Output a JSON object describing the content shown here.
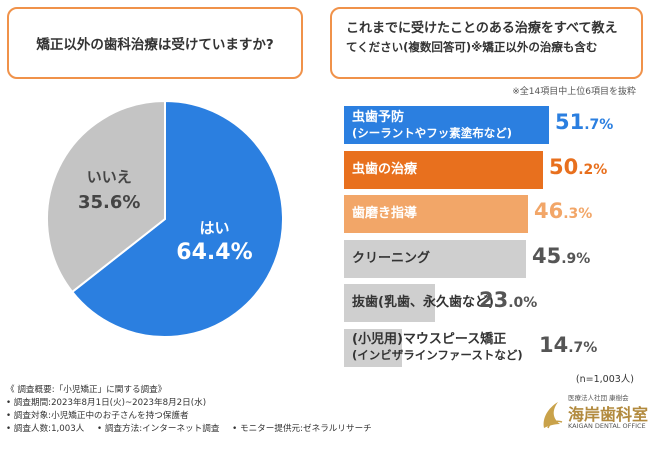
{
  "question_left": "矯正以外の歯科治療は受けていますか?",
  "question_right": {
    "line1": "これまでに受けたことのある治療をすべて教え",
    "line2": "てください(複数回答可)※矯正以外の治療も含む"
  },
  "note_top": "※全14項目中上位6項目を抜粋",
  "n_note": "(n=1,003人)",
  "colors": {
    "pie_yes": "#2b7fe0",
    "pie_no": "#c4c4c4",
    "border": "#f0924a"
  },
  "chart_data": [
    {
      "type": "pie",
      "title": "矯正以外の歯科治療は受けていますか?",
      "slices": [
        {
          "label": "はい",
          "value": 64.4,
          "display": "64.4%"
        },
        {
          "label": "いいえ",
          "value": 35.6,
          "display": "35.6%"
        }
      ]
    },
    {
      "type": "bar",
      "orientation": "horizontal",
      "title": "これまでに受けたことのある治療をすべて教えてください(複数回答可)",
      "xlim": [
        0,
        60
      ],
      "categories": [
        {
          "line1": "虫歯予防",
          "line2": "(シーラントやフッ素塗布など)",
          "value": 51.7,
          "int": "51",
          "dec": ".7%",
          "color": "#2b7fe0",
          "text_color": "#ffffff",
          "pct_color": "#2b7fe0"
        },
        {
          "line1": "虫歯の治療",
          "line2": "",
          "value": 50.2,
          "int": "50",
          "dec": ".2%",
          "color": "#e8701e",
          "text_color": "#ffffff",
          "pct_color": "#e8701e"
        },
        {
          "line1": "歯磨き指導",
          "line2": "",
          "value": 46.3,
          "int": "46",
          "dec": ".3%",
          "color": "#f2a668",
          "text_color": "#ffffff",
          "pct_color": "#f2a668"
        },
        {
          "line1": "クリーニング",
          "line2": "",
          "value": 45.9,
          "int": "45",
          "dec": ".9%",
          "color": "#cfcfcf",
          "text_color": "#333333",
          "pct_color": "#555555"
        },
        {
          "line1": "抜歯(乳歯、永久歯など)",
          "line2": "",
          "value": 23.0,
          "int": "23",
          "dec": ".0%",
          "color": "#cfcfcf",
          "text_color": "#333333",
          "pct_color": "#555555"
        },
        {
          "line1": "(小児用)マウスピース矯正",
          "line2": "(インビザラインファーストなど)",
          "value": 14.7,
          "int": "14",
          "dec": ".7%",
          "color": "#cfcfcf",
          "text_color": "#333333",
          "pct_color": "#555555"
        }
      ]
    }
  ],
  "footer": {
    "title": "《 調査概要:「小児矯正」に関する調査》",
    "period": "• 調査期間:2023年8月1日(火)~2023年8月2日(水)",
    "target": "• 調査対象:小児矯正中のお子さんを持つ保護者",
    "count": "• 調査人数:1,003人",
    "method": "• 調査方法:インターネット調査",
    "provider": "• モニター提供元:ゼネラルリサーチ"
  },
  "logo": {
    "corp": "医療法人社団 康樹会",
    "name": "海岸歯科室",
    "english": "KAIGAN DENTAL OFFICE"
  }
}
